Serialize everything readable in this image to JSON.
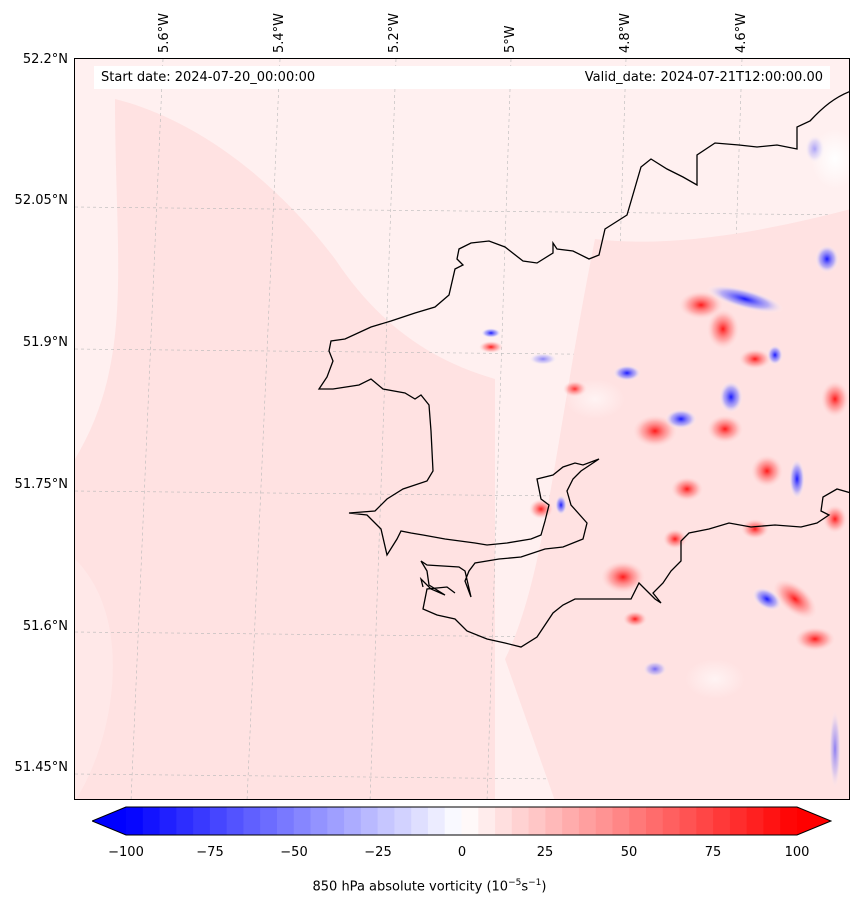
{
  "header": {
    "start_date": "Start date: 2024-07-20_00:00:00",
    "valid_date": "Valid_date: 2024-07-21T12:00:00.00"
  },
  "axes": {
    "lon_labels": [
      "5.6°W",
      "5.4°W",
      "5.2°W",
      "5°W",
      "4.8°W",
      "4.6°W"
    ],
    "lat_labels": [
      "52.2°N",
      "52.05°N",
      "51.9°N",
      "51.75°N",
      "51.6°N",
      "51.45°N"
    ]
  },
  "colorbar": {
    "ticks": [
      "−100",
      "−75",
      "−50",
      "−25",
      "0",
      "25",
      "50",
      "75",
      "100"
    ],
    "label_text": "850 hPa absolute vorticity (10",
    "label_exp1": "−5",
    "label_mid": "s",
    "label_exp2": "−1",
    "label_end": ")",
    "colormap": "bwr",
    "min": -100,
    "max": 100,
    "extend": "both"
  },
  "colors": {
    "sea_background": "#fff0f0",
    "coastline": "#000000",
    "positive": "#ff0000",
    "negative": "#0000ff"
  }
}
